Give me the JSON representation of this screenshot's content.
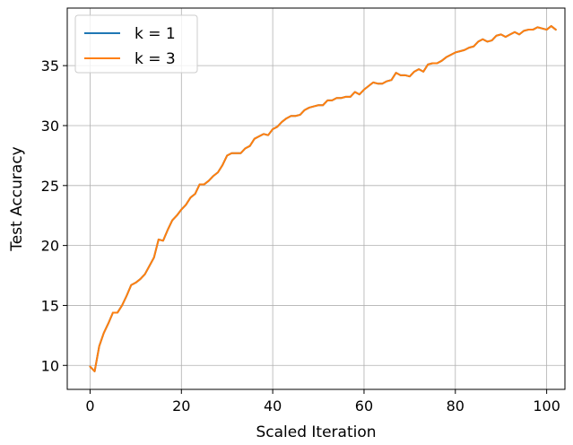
{
  "chart_data": {
    "type": "line",
    "title": "",
    "xlabel": "Scaled Iteration",
    "ylabel": "Test Accuracy",
    "xlim": [
      -5,
      104
    ],
    "ylim": [
      8.0,
      39.8
    ],
    "xticks": [
      0,
      20,
      40,
      60,
      80,
      100
    ],
    "yticks": [
      10,
      15,
      20,
      25,
      30,
      35
    ],
    "grid": true,
    "legend_position": "top-left",
    "series": [
      {
        "name": "k = 1",
        "color": "#1f77b4",
        "x": [
          0,
          1,
          2,
          3,
          4,
          5,
          6,
          7,
          8,
          9,
          10,
          11,
          12,
          13,
          14,
          15,
          16,
          17,
          18,
          19,
          20,
          21,
          22,
          23,
          24,
          25,
          26,
          27,
          28,
          29,
          30,
          31,
          32,
          33,
          34,
          35,
          36,
          37,
          38,
          39,
          40,
          41,
          42,
          43,
          44,
          45,
          46,
          47,
          48,
          49,
          50,
          51,
          52,
          53,
          54,
          55,
          56,
          57,
          58,
          59,
          60,
          61,
          62,
          63,
          64,
          65,
          66,
          67,
          68,
          69,
          70,
          71,
          72,
          73,
          74,
          75,
          76,
          77,
          78,
          79,
          80,
          81,
          82,
          83,
          84,
          85,
          86,
          87,
          88,
          89,
          90,
          91,
          92,
          93,
          94,
          95,
          96,
          97,
          98,
          99,
          100,
          101,
          102
        ],
        "y": [
          9.9,
          9.5,
          11.6,
          12.7,
          13.5,
          14.4,
          14.4,
          15.0,
          15.8,
          16.7,
          16.9,
          17.2,
          17.6,
          18.3,
          19.0,
          20.5,
          20.4,
          21.3,
          22.1,
          22.5,
          23.0,
          23.4,
          24.0,
          24.3,
          25.1,
          25.1,
          25.4,
          25.8,
          26.1,
          26.7,
          27.5,
          27.7,
          27.7,
          27.7,
          28.1,
          28.3,
          28.9,
          29.1,
          29.3,
          29.2,
          29.7,
          29.9,
          30.3,
          30.6,
          30.8,
          30.8,
          30.9,
          31.3,
          31.5,
          31.6,
          31.7,
          31.7,
          32.1,
          32.1,
          32.3,
          32.3,
          32.4,
          32.4,
          32.8,
          32.6,
          33.0,
          33.3,
          33.6,
          33.5,
          33.5,
          33.7,
          33.8,
          34.4,
          34.2,
          34.2,
          34.1,
          34.5,
          34.7,
          34.5,
          35.1,
          35.2,
          35.2,
          35.4,
          35.7,
          35.9,
          36.1,
          36.2,
          36.3,
          36.5,
          36.6,
          37.0,
          37.2,
          37.0,
          37.1,
          37.5,
          37.6,
          37.4,
          37.6,
          37.8,
          37.6,
          37.9,
          38.0,
          38.0,
          38.2,
          38.1,
          38.0,
          38.3,
          38.0
        ]
      },
      {
        "name": "k = 3",
        "color": "#ff7f0e",
        "x": [
          0,
          1,
          2,
          3,
          4,
          5,
          6,
          7,
          8,
          9,
          10,
          11,
          12,
          13,
          14,
          15,
          16,
          17,
          18,
          19,
          20,
          21,
          22,
          23,
          24,
          25,
          26,
          27,
          28,
          29,
          30,
          31,
          32,
          33,
          34,
          35,
          36,
          37,
          38,
          39,
          40,
          41,
          42,
          43,
          44,
          45,
          46,
          47,
          48,
          49,
          50,
          51,
          52,
          53,
          54,
          55,
          56,
          57,
          58,
          59,
          60,
          61,
          62,
          63,
          64,
          65,
          66,
          67,
          68,
          69,
          70,
          71,
          72,
          73,
          74,
          75,
          76,
          77,
          78,
          79,
          80,
          81,
          82,
          83,
          84,
          85,
          86,
          87,
          88,
          89,
          90,
          91,
          92,
          93,
          94,
          95,
          96,
          97,
          98,
          99,
          100,
          101,
          102
        ],
        "y": [
          9.9,
          9.5,
          11.6,
          12.7,
          13.5,
          14.4,
          14.4,
          15.0,
          15.8,
          16.7,
          16.9,
          17.2,
          17.6,
          18.3,
          19.0,
          20.5,
          20.4,
          21.3,
          22.1,
          22.5,
          23.0,
          23.4,
          24.0,
          24.3,
          25.1,
          25.1,
          25.4,
          25.8,
          26.1,
          26.7,
          27.5,
          27.7,
          27.7,
          27.7,
          28.1,
          28.3,
          28.9,
          29.1,
          29.3,
          29.2,
          29.7,
          29.9,
          30.3,
          30.6,
          30.8,
          30.8,
          30.9,
          31.3,
          31.5,
          31.6,
          31.7,
          31.7,
          32.1,
          32.1,
          32.3,
          32.3,
          32.4,
          32.4,
          32.8,
          32.6,
          33.0,
          33.3,
          33.6,
          33.5,
          33.5,
          33.7,
          33.8,
          34.4,
          34.2,
          34.2,
          34.1,
          34.5,
          34.7,
          34.5,
          35.1,
          35.2,
          35.2,
          35.4,
          35.7,
          35.9,
          36.1,
          36.2,
          36.3,
          36.5,
          36.6,
          37.0,
          37.2,
          37.0,
          37.1,
          37.5,
          37.6,
          37.4,
          37.6,
          37.8,
          37.6,
          37.9,
          38.0,
          38.0,
          38.2,
          38.1,
          38.0,
          38.3,
          38.0
        ]
      }
    ]
  }
}
